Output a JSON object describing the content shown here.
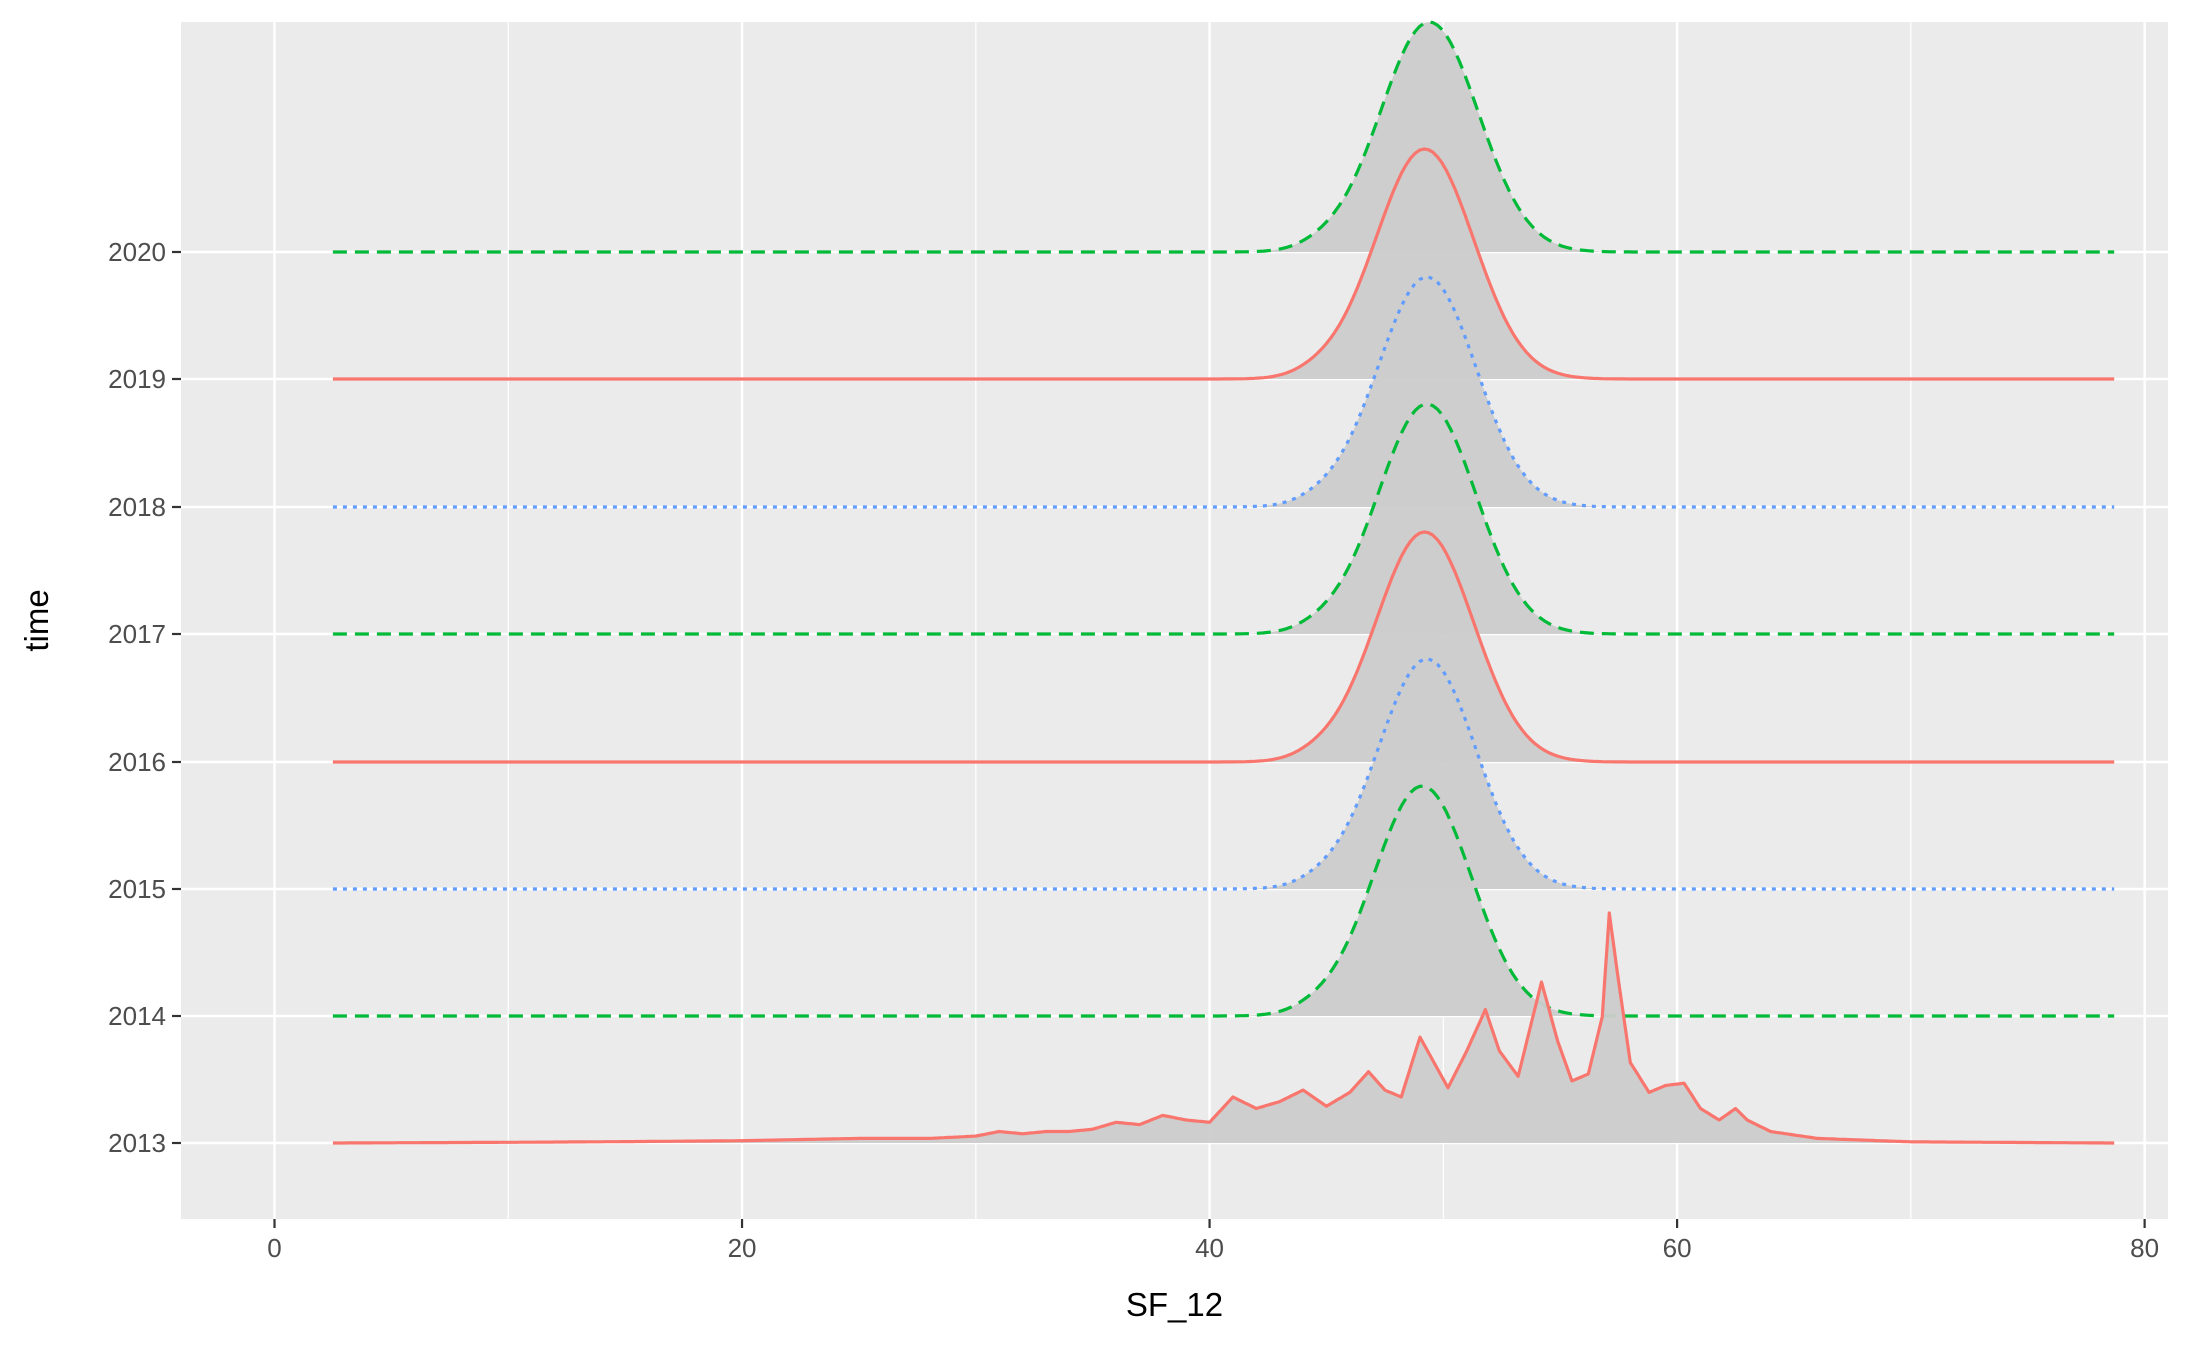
{
  "chart_data": {
    "type": "ridgeline",
    "xlabel": "SF_12",
    "ylabel": "time",
    "xlim": [
      -4,
      81
    ],
    "x_ticks": [
      0,
      20,
      40,
      60,
      80
    ],
    "x_minor_ticks": [
      10,
      30,
      50,
      70
    ],
    "grid": true,
    "legend": "none",
    "x_range": [
      2.5,
      78.7
    ],
    "categories": [
      "2013",
      "2014",
      "2015",
      "2016",
      "2017",
      "2018",
      "2019",
      "2020"
    ],
    "series": [
      {
        "category": "2013",
        "color": "#F8766D",
        "linetype": "solid",
        "peak_x": 57.1,
        "peak_height": 1.0,
        "points": [
          [
            2.5,
            0
          ],
          [
            10,
            0.003
          ],
          [
            15,
            0.006
          ],
          [
            20,
            0.01
          ],
          [
            25,
            0.02
          ],
          [
            28,
            0.02
          ],
          [
            30,
            0.03
          ],
          [
            31,
            0.05
          ],
          [
            32,
            0.04
          ],
          [
            33,
            0.05
          ],
          [
            34,
            0.05
          ],
          [
            35,
            0.06
          ],
          [
            36,
            0.09
          ],
          [
            37,
            0.08
          ],
          [
            38,
            0.12
          ],
          [
            39,
            0.1
          ],
          [
            40,
            0.09
          ],
          [
            41,
            0.2
          ],
          [
            42,
            0.15
          ],
          [
            43,
            0.18
          ],
          [
            44,
            0.23
          ],
          [
            45,
            0.16
          ],
          [
            46,
            0.22
          ],
          [
            46.8,
            0.31
          ],
          [
            47.5,
            0.23
          ],
          [
            48.2,
            0.2
          ],
          [
            49.0,
            0.46
          ],
          [
            49.6,
            0.35
          ],
          [
            50.2,
            0.24
          ],
          [
            51.0,
            0.4
          ],
          [
            51.8,
            0.58
          ],
          [
            52.4,
            0.4
          ],
          [
            53.2,
            0.29
          ],
          [
            54.2,
            0.7
          ],
          [
            54.9,
            0.44
          ],
          [
            55.5,
            0.27
          ],
          [
            56.2,
            0.3
          ],
          [
            56.8,
            0.55
          ],
          [
            57.1,
            1.0
          ],
          [
            57.5,
            0.7
          ],
          [
            58.0,
            0.35
          ],
          [
            58.8,
            0.22
          ],
          [
            59.5,
            0.25
          ],
          [
            60.3,
            0.26
          ],
          [
            61.0,
            0.15
          ],
          [
            61.8,
            0.1
          ],
          [
            62.5,
            0.15
          ],
          [
            63.0,
            0.1
          ],
          [
            64,
            0.05
          ],
          [
            66,
            0.02
          ],
          [
            70,
            0.005
          ],
          [
            78.7,
            0
          ]
        ]
      },
      {
        "category": "2014",
        "color": "#00BA38",
        "linetype": "dashed",
        "peak_x": 49.1,
        "peak_height": 1.0,
        "sd": 2.1
      },
      {
        "category": "2015",
        "color": "#619CFF",
        "linetype": "dotted",
        "peak_x": 49.3,
        "peak_height": 1.0,
        "sd": 2.1
      },
      {
        "category": "2016",
        "color": "#F8766D",
        "linetype": "solid",
        "peak_x": 49.2,
        "peak_height": 1.0,
        "sd": 2.1
      },
      {
        "category": "2017",
        "color": "#00BA38",
        "linetype": "dashed",
        "peak_x": 49.3,
        "peak_height": 1.0,
        "sd": 2.1
      },
      {
        "category": "2018",
        "color": "#619CFF",
        "linetype": "dotted",
        "peak_x": 49.3,
        "peak_height": 1.0,
        "sd": 2.1
      },
      {
        "category": "2019",
        "color": "#F8766D",
        "linetype": "solid",
        "peak_x": 49.2,
        "peak_height": 1.0,
        "sd": 2.1
      },
      {
        "category": "2020",
        "color": "#00BA38",
        "linetype": "dashed",
        "peak_x": 49.4,
        "peak_height": 1.0,
        "sd": 2.1
      }
    ],
    "fill_color": "#cccccc",
    "panel_background": "#ebebeb",
    "grid_color": "#ffffff"
  }
}
